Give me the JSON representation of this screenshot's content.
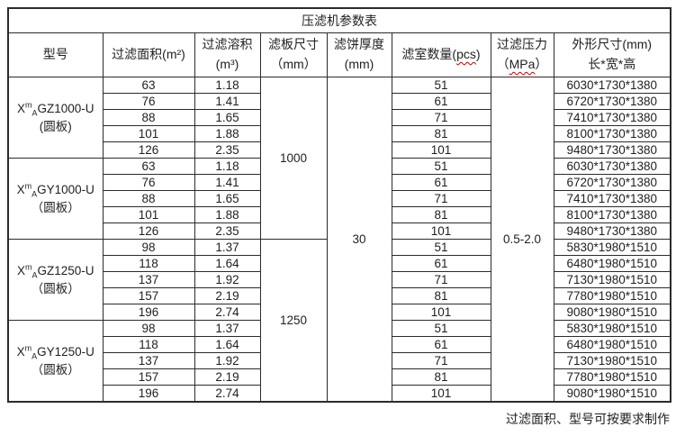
{
  "title": "压滤机参数表",
  "footer_note": "过滤面积、型号可按要求制作",
  "columns": {
    "model": "型号",
    "area": "过滤面积(m²)",
    "volume_line1": "过滤溶积",
    "volume_line2": "(m³)",
    "plate_line1": "滤板尺寸",
    "plate_line2": "（mm）",
    "cake_line1": "滤饼厚度",
    "cake_line2": "(mm)",
    "chambers_prefix": "滤室数量(",
    "chambers_unit": "pcs",
    "chambers_suffix": ")",
    "pressure_line1": "过滤压力",
    "pressure_prefix": "（",
    "pressure_unit": "MPa",
    "pressure_suffix": "）",
    "dims_line1": "外形尺寸(mm)",
    "dims_line2": "长*宽*高"
  },
  "merged": {
    "plate_size_1000": "1000",
    "plate_size_1250": "1250",
    "cake_thickness": "30",
    "pressure": "0.5-2.0"
  },
  "groups": [
    {
      "model": {
        "pre": "X",
        "sup": "m",
        "sub": "A",
        "main": "GZ1000-U",
        "plate": "(圆板)"
      },
      "rows": [
        {
          "area": "63",
          "volume": "1.18",
          "chambers": "51",
          "dims": "6030*1730*1380"
        },
        {
          "area": "76",
          "volume": "1.41",
          "chambers": "61",
          "dims": "6720*1730*1380"
        },
        {
          "area": "88",
          "volume": "1.65",
          "chambers": "71",
          "dims": "7410*1730*1380"
        },
        {
          "area": "101",
          "volume": "1.88",
          "chambers": "81",
          "dims": "8100*1730*1380"
        },
        {
          "area": "126",
          "volume": "2.35",
          "chambers": "101",
          "dims": "9480*1730*1380"
        }
      ]
    },
    {
      "model": {
        "pre": "X",
        "sup": "m",
        "sub": "A",
        "main": "GY1000-U",
        "plate": "（圆板）"
      },
      "rows": [
        {
          "area": "63",
          "volume": "1.18",
          "chambers": "51",
          "dims": "6030*1730*1380"
        },
        {
          "area": "76",
          "volume": "1.41",
          "chambers": "61",
          "dims": "6720*1730*1380"
        },
        {
          "area": "88",
          "volume": "1.65",
          "chambers": "71",
          "dims": "7410*1730*1380"
        },
        {
          "area": "101",
          "volume": "1.88",
          "chambers": "81",
          "dims": "8100*1730*1380"
        },
        {
          "area": "126",
          "volume": "2.35",
          "chambers": "101",
          "dims": "9480*1730*1380"
        }
      ]
    },
    {
      "model": {
        "pre": "X",
        "sup": "m",
        "sub": "A",
        "main": "GZ1250-U",
        "plate": "（圆板）"
      },
      "rows": [
        {
          "area": "98",
          "volume": "1.37",
          "chambers": "51",
          "dims": "5830*1980*1510"
        },
        {
          "area": "118",
          "volume": "1.64",
          "chambers": "61",
          "dims": "6480*1980*1510"
        },
        {
          "area": "137",
          "volume": "1.92",
          "chambers": "71",
          "dims": "7130*1980*1510"
        },
        {
          "area": "157",
          "volume": "2.19",
          "chambers": "81",
          "dims": "7780*1980*1510"
        },
        {
          "area": "196",
          "volume": "2.74",
          "chambers": "101",
          "dims": "9080*1980*1510"
        }
      ]
    },
    {
      "model": {
        "pre": "X",
        "sup": "m",
        "sub": "A",
        "main": "GY1250-U",
        "plate": "（圆板）"
      },
      "rows": [
        {
          "area": "98",
          "volume": "1.37",
          "chambers": "51",
          "dims": "5830*1980*1510"
        },
        {
          "area": "118",
          "volume": "1.64",
          "chambers": "61",
          "dims": "6480*1980*1510"
        },
        {
          "area": "137",
          "volume": "1.92",
          "chambers": "71",
          "dims": "7130*1980*1510"
        },
        {
          "area": "157",
          "volume": "2.19",
          "chambers": "81",
          "dims": "7780*1980*1510"
        },
        {
          "area": "196",
          "volume": "2.74",
          "chambers": "101",
          "dims": "9080*1980*1510"
        }
      ]
    }
  ]
}
